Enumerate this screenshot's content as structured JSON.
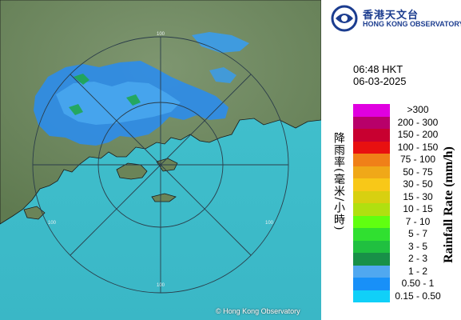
{
  "map": {
    "range_rings": [
      {
        "label": "100"
      },
      {
        "label": "100"
      },
      {
        "label": "100"
      },
      {
        "label": "100"
      }
    ],
    "copyright": "© Hong Kong Observatory",
    "colors": {
      "sea": "#3ec6d8",
      "land": "#6f8a5c",
      "ring": "#2b3d4a",
      "coast": "#1a1a1a"
    }
  },
  "header": {
    "logo_icon": "hko-logo-icon",
    "org_chinese": "香港天文台",
    "org_english": "HONG KONG OBSERVATORY"
  },
  "timestamp": {
    "time": "06:48 HKT",
    "date": "06-03-2025"
  },
  "legend": {
    "title_chinese": "降雨率(毫米/小時)",
    "title_english": "Rainfall Rate (mm/h)",
    "items": [
      {
        "label": ">300",
        "color": "#e000e0"
      },
      {
        "label": "200 - 300",
        "color": "#b8006a"
      },
      {
        "label": "150 - 200",
        "color": "#c80030"
      },
      {
        "label": "100 - 150",
        "color": "#e81010"
      },
      {
        "label": "75 - 100",
        "color": "#f08018"
      },
      {
        "label": "50 - 75",
        "color": "#f0a818"
      },
      {
        "label": "30 - 50",
        "color": "#f8c818"
      },
      {
        "label": "15 - 30",
        "color": "#d8d010"
      },
      {
        "label": "10 - 15",
        "color": "#b0e010"
      },
      {
        "label": "7 - 10",
        "color": "#60ff10"
      },
      {
        "label": "5 - 7",
        "color": "#30e030"
      },
      {
        "label": "3 - 5",
        "color": "#20c040"
      },
      {
        "label": "2 - 3",
        "color": "#189048"
      },
      {
        "label": "1 - 2",
        "color": "#50a8f0"
      },
      {
        "label": "0.50 - 1",
        "color": "#1890f8"
      },
      {
        "label": "0.15 - 0.50",
        "color": "#10d0f8"
      }
    ]
  }
}
